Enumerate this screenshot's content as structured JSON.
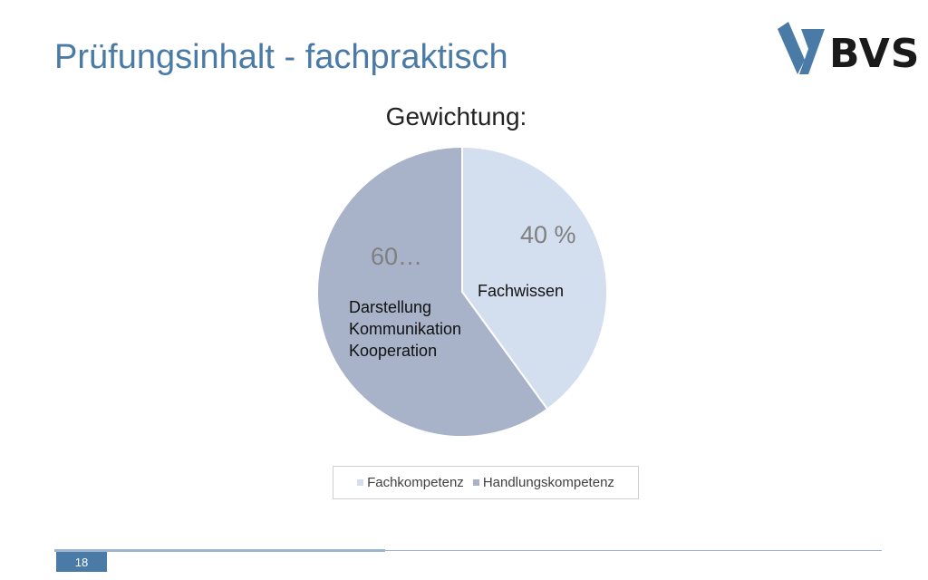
{
  "slide": {
    "title": "Prüfungsinhalt - fachpraktisch",
    "page_number": "18"
  },
  "logo": {
    "text": "BVS",
    "mark": "bvs-chevron-logo"
  },
  "colors": {
    "title": "#4a7aa6",
    "fachkompetenz": "#d3deef",
    "handlungskompetenz": "#a8b3c9",
    "footer": "#4a7aa6"
  },
  "chart_data": {
    "type": "pie",
    "title": "Gewichtung:",
    "slices": [
      {
        "name": "Fachkompetenz",
        "value": 40,
        "data_label": "40 %",
        "inner_label": [
          "Fachwissen"
        ]
      },
      {
        "name": "Handlungskompetenz",
        "value": 60,
        "data_label": "60…",
        "inner_label": [
          "Darstellung",
          "Kommunikation",
          "Kooperation"
        ]
      }
    ],
    "legend": {
      "placement": "bottom",
      "entries": [
        "Fachkompetenz",
        "Handlungskompetenz"
      ]
    }
  }
}
